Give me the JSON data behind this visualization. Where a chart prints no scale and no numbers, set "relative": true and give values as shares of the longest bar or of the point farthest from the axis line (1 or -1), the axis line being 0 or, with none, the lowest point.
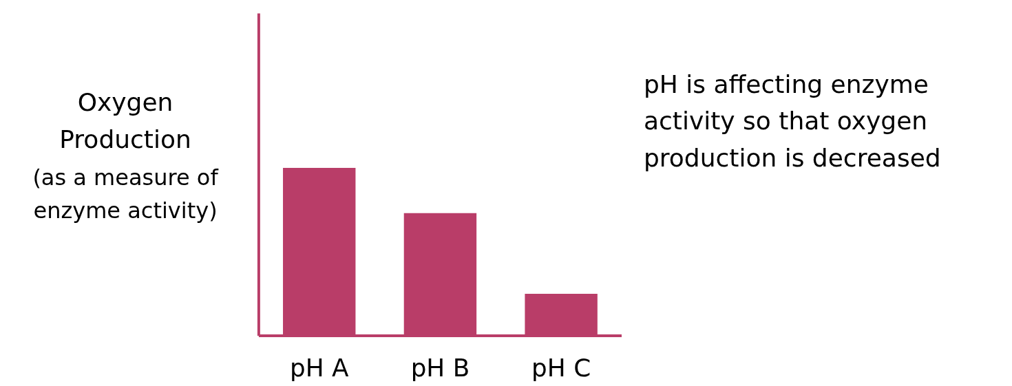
{
  "chart_data": {
    "type": "bar",
    "relative": true,
    "ylabel": "Oxygen Production",
    "categories": [
      "pH A",
      "pH B",
      "pH C"
    ],
    "values": [
      1,
      0.73,
      0.25
    ],
    "color": "#b93d68",
    "annotations": [
      "(as a measure of enzyme activity)",
      "pH is affecting enzyme activity so that oxygen production is decreased"
    ]
  }
}
